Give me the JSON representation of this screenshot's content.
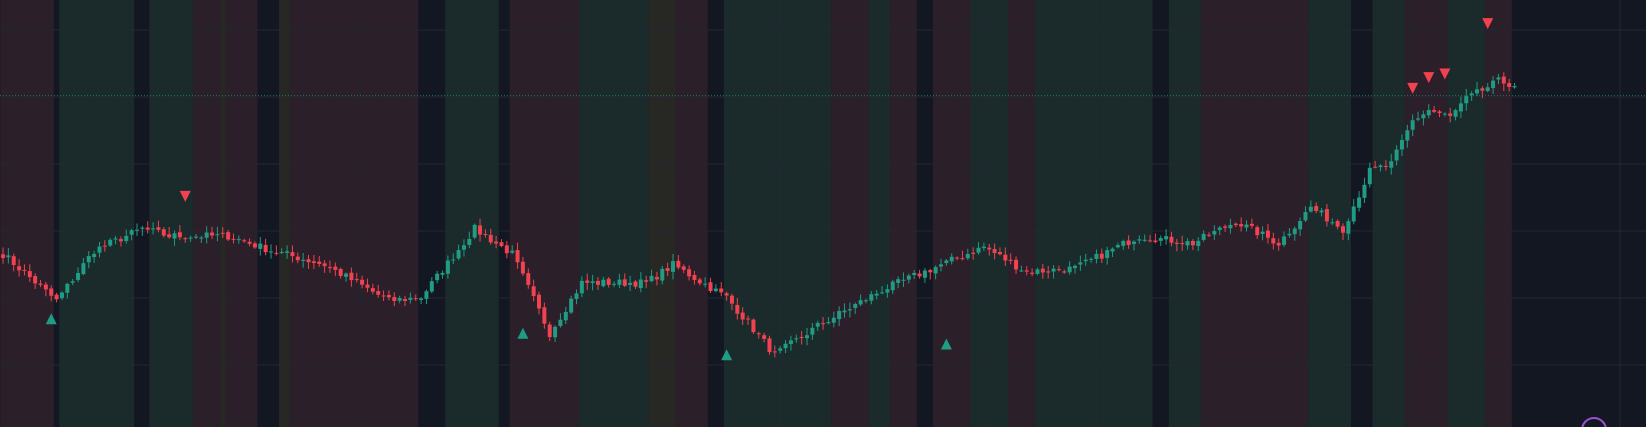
{
  "colors": {
    "background": "#131722",
    "grid": "#232733",
    "up": "#1f9c83",
    "down": "#f0424f",
    "regime_bull": "#1b2b2b",
    "regime_bear": "#2b1f29",
    "regime_neutral": "#272824",
    "regime_none": "#131722",
    "price_line": "#1f9c83",
    "marker_buy": "#1f9c83",
    "marker_sell": "#f0424f",
    "cursor_ring": "#9c4fd6"
  },
  "chart_data": {
    "type": "candlestick",
    "title": "",
    "xlabel": "",
    "ylabel": "",
    "ylim": [
      0,
      100
    ],
    "grid": true,
    "axes_visible": false,
    "last_price_line": 79,
    "key_points": [
      {
        "bar": 0,
        "close": 35
      },
      {
        "bar": 10,
        "close": 22
      },
      {
        "bar": 17,
        "close": 36
      },
      {
        "bar": 26,
        "close": 42
      },
      {
        "bar": 31,
        "close": 40
      },
      {
        "bar": 42,
        "close": 40
      },
      {
        "bar": 50,
        "close": 36
      },
      {
        "bar": 60,
        "close": 32
      },
      {
        "bar": 72,
        "close": 22
      },
      {
        "bar": 78,
        "close": 23
      },
      {
        "bar": 88,
        "close": 42
      },
      {
        "bar": 95,
        "close": 35
      },
      {
        "bar": 102,
        "close": 13
      },
      {
        "bar": 108,
        "close": 27
      },
      {
        "bar": 120,
        "close": 27
      },
      {
        "bar": 125,
        "close": 32
      },
      {
        "bar": 135,
        "close": 23
      },
      {
        "bar": 144,
        "close": 7
      },
      {
        "bar": 152,
        "close": 15
      },
      {
        "bar": 164,
        "close": 25
      },
      {
        "bar": 175,
        "close": 32
      },
      {
        "bar": 183,
        "close": 37
      },
      {
        "bar": 191,
        "close": 30
      },
      {
        "bar": 200,
        "close": 31
      },
      {
        "bar": 212,
        "close": 40
      },
      {
        "bar": 222,
        "close": 38
      },
      {
        "bar": 230,
        "close": 44
      },
      {
        "bar": 238,
        "close": 38
      },
      {
        "bar": 244,
        "close": 48
      },
      {
        "bar": 250,
        "close": 42
      },
      {
        "bar": 255,
        "close": 58
      },
      {
        "bar": 259,
        "close": 60
      },
      {
        "bar": 263,
        "close": 72
      },
      {
        "bar": 266,
        "close": 75
      },
      {
        "bar": 270,
        "close": 73
      },
      {
        "bar": 273,
        "close": 78
      },
      {
        "bar": 279,
        "close": 83
      },
      {
        "bar": 282,
        "close": 82
      }
    ],
    "markers": [
      {
        "bar": 9,
        "type": "buy",
        "value": 17
      },
      {
        "bar": 34,
        "type": "sell",
        "value": 51
      },
      {
        "bar": 97,
        "type": "buy",
        "value": 13
      },
      {
        "bar": 135,
        "type": "buy",
        "value": 7
      },
      {
        "bar": 176,
        "type": "buy",
        "value": 10
      },
      {
        "bar": 263,
        "type": "sell",
        "value": 81
      },
      {
        "bar": 266,
        "type": "sell",
        "value": 84
      },
      {
        "bar": 269,
        "type": "sell",
        "value": 85
      },
      {
        "bar": 277,
        "type": "sell",
        "value": 99
      }
    ],
    "regimes": [
      {
        "from": 0,
        "to": 10,
        "state": "bear"
      },
      {
        "from": 10,
        "to": 11,
        "state": "none"
      },
      {
        "from": 11,
        "to": 25,
        "state": "bull"
      },
      {
        "from": 25,
        "to": 28,
        "state": "none"
      },
      {
        "from": 28,
        "to": 36,
        "state": "bull"
      },
      {
        "from": 36,
        "to": 41,
        "state": "bear"
      },
      {
        "from": 41,
        "to": 42,
        "state": "neutral"
      },
      {
        "from": 42,
        "to": 48,
        "state": "bear"
      },
      {
        "from": 48,
        "to": 52,
        "state": "none"
      },
      {
        "from": 52,
        "to": 54,
        "state": "neutral"
      },
      {
        "from": 54,
        "to": 78,
        "state": "bear"
      },
      {
        "from": 78,
        "to": 83,
        "state": "none"
      },
      {
        "from": 83,
        "to": 93,
        "state": "bull"
      },
      {
        "from": 93,
        "to": 95,
        "state": "none"
      },
      {
        "from": 95,
        "to": 108,
        "state": "bear"
      },
      {
        "from": 108,
        "to": 121,
        "state": "bull"
      },
      {
        "from": 121,
        "to": 126,
        "state": "neutral"
      },
      {
        "from": 126,
        "to": 132,
        "state": "bear"
      },
      {
        "from": 132,
        "to": 135,
        "state": "none"
      },
      {
        "from": 135,
        "to": 138,
        "state": "bull"
      },
      {
        "from": 138,
        "to": 155,
        "state": "bull"
      },
      {
        "from": 155,
        "to": 162,
        "state": "bear"
      },
      {
        "from": 162,
        "to": 166,
        "state": "bull"
      },
      {
        "from": 166,
        "to": 171,
        "state": "bear"
      },
      {
        "from": 171,
        "to": 174,
        "state": "none"
      },
      {
        "from": 174,
        "to": 181,
        "state": "bear"
      },
      {
        "from": 181,
        "to": 188,
        "state": "bull"
      },
      {
        "from": 188,
        "to": 193,
        "state": "bear"
      },
      {
        "from": 193,
        "to": 205,
        "state": "bull"
      },
      {
        "from": 205,
        "to": 215,
        "state": "bull"
      },
      {
        "from": 215,
        "to": 218,
        "state": "none"
      },
      {
        "from": 218,
        "to": 224,
        "state": "bull"
      },
      {
        "from": 224,
        "to": 233,
        "state": "bear"
      },
      {
        "from": 233,
        "to": 244,
        "state": "bear"
      },
      {
        "from": 244,
        "to": 252,
        "state": "bull"
      },
      {
        "from": 252,
        "to": 256,
        "state": "none"
      },
      {
        "from": 256,
        "to": 262,
        "state": "bull"
      },
      {
        "from": 262,
        "to": 270,
        "state": "bear"
      },
      {
        "from": 270,
        "to": 274,
        "state": "bull"
      },
      {
        "from": 274,
        "to": 277,
        "state": "bull"
      },
      {
        "from": 277,
        "to": 282,
        "state": "bear"
      }
    ]
  }
}
